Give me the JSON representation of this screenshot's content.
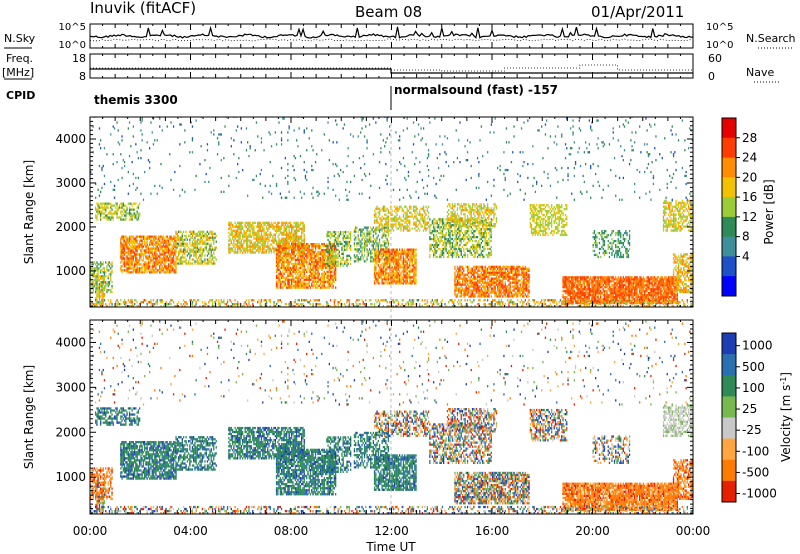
{
  "header": {
    "station": "Inuvik (fitACF)",
    "beam": "Beam 08",
    "date": "01/Apr/2011"
  },
  "left_labels": {
    "nsky": "N.Sky",
    "freq_top": "Freq.",
    "freq_unit": "[MHz]",
    "cpid": "CPID"
  },
  "right_labels": {
    "nsearch": "N.Search",
    "nave": "Nave"
  },
  "cpid_segments": [
    {
      "label": "themis 3300",
      "start_hour": 0
    },
    {
      "label": "normalsound (fast) -157",
      "start_hour": 12
    }
  ],
  "chart_data": [
    {
      "type": "line",
      "name": "noise",
      "series_labels": [
        "N.Sky",
        "N.Search"
      ],
      "left_ticks": [
        "10^5",
        "10^0"
      ],
      "right_ticks": [
        "10^5",
        "10^0"
      ],
      "x_range_hours": [
        0,
        24
      ]
    },
    {
      "type": "line",
      "name": "frequency",
      "series_labels": [
        "Freq. [MHz]",
        "Nave"
      ],
      "left_ticks": [
        "18",
        "8"
      ],
      "right_ticks": [
        "60",
        "0"
      ],
      "x_range_hours": [
        0,
        24
      ]
    },
    {
      "type": "heatmap",
      "name": "power",
      "ylabel": "Slant Range [km]",
      "yticks": [
        1000,
        2000,
        3000,
        4000
      ],
      "ylim": [
        180,
        4500
      ],
      "xlim_hours": [
        0,
        24
      ],
      "colorbar_label": "Power [dB]",
      "colorbar_ticks": [
        "28",
        "24",
        "20",
        "16",
        "12",
        "8",
        "4"
      ],
      "colorbar_colors": [
        "#e60000",
        "#ff3d00",
        "#ff8c00",
        "#f2c200",
        "#9bcc3a",
        "#2e8b57",
        "#3e8f9a",
        "#1e50c8",
        "#0000ff"
      ]
    },
    {
      "type": "heatmap",
      "name": "velocity",
      "ylabel": "Slant Range [km]",
      "yticks": [
        1000,
        2000,
        3000,
        4000
      ],
      "ylim": [
        180,
        4500
      ],
      "xlim_hours": [
        0,
        24
      ],
      "xticks": [
        "00:00",
        "04:00",
        "08:00",
        "12:00",
        "16:00",
        "20:00",
        "00:00"
      ],
      "xlabel": "Time UT",
      "colorbar_label": "Velocity [m s-1]",
      "colorbar_ticks": [
        "1000",
        "500",
        "100",
        "25",
        "-25",
        "-100",
        "-500",
        "-1000"
      ],
      "colorbar_colors": [
        "#1e3cb4",
        "#2a6fb0",
        "#2e8b57",
        "#78b850",
        "#c8c8c8",
        "#ffa640",
        "#ff7a00",
        "#e62000"
      ]
    }
  ]
}
